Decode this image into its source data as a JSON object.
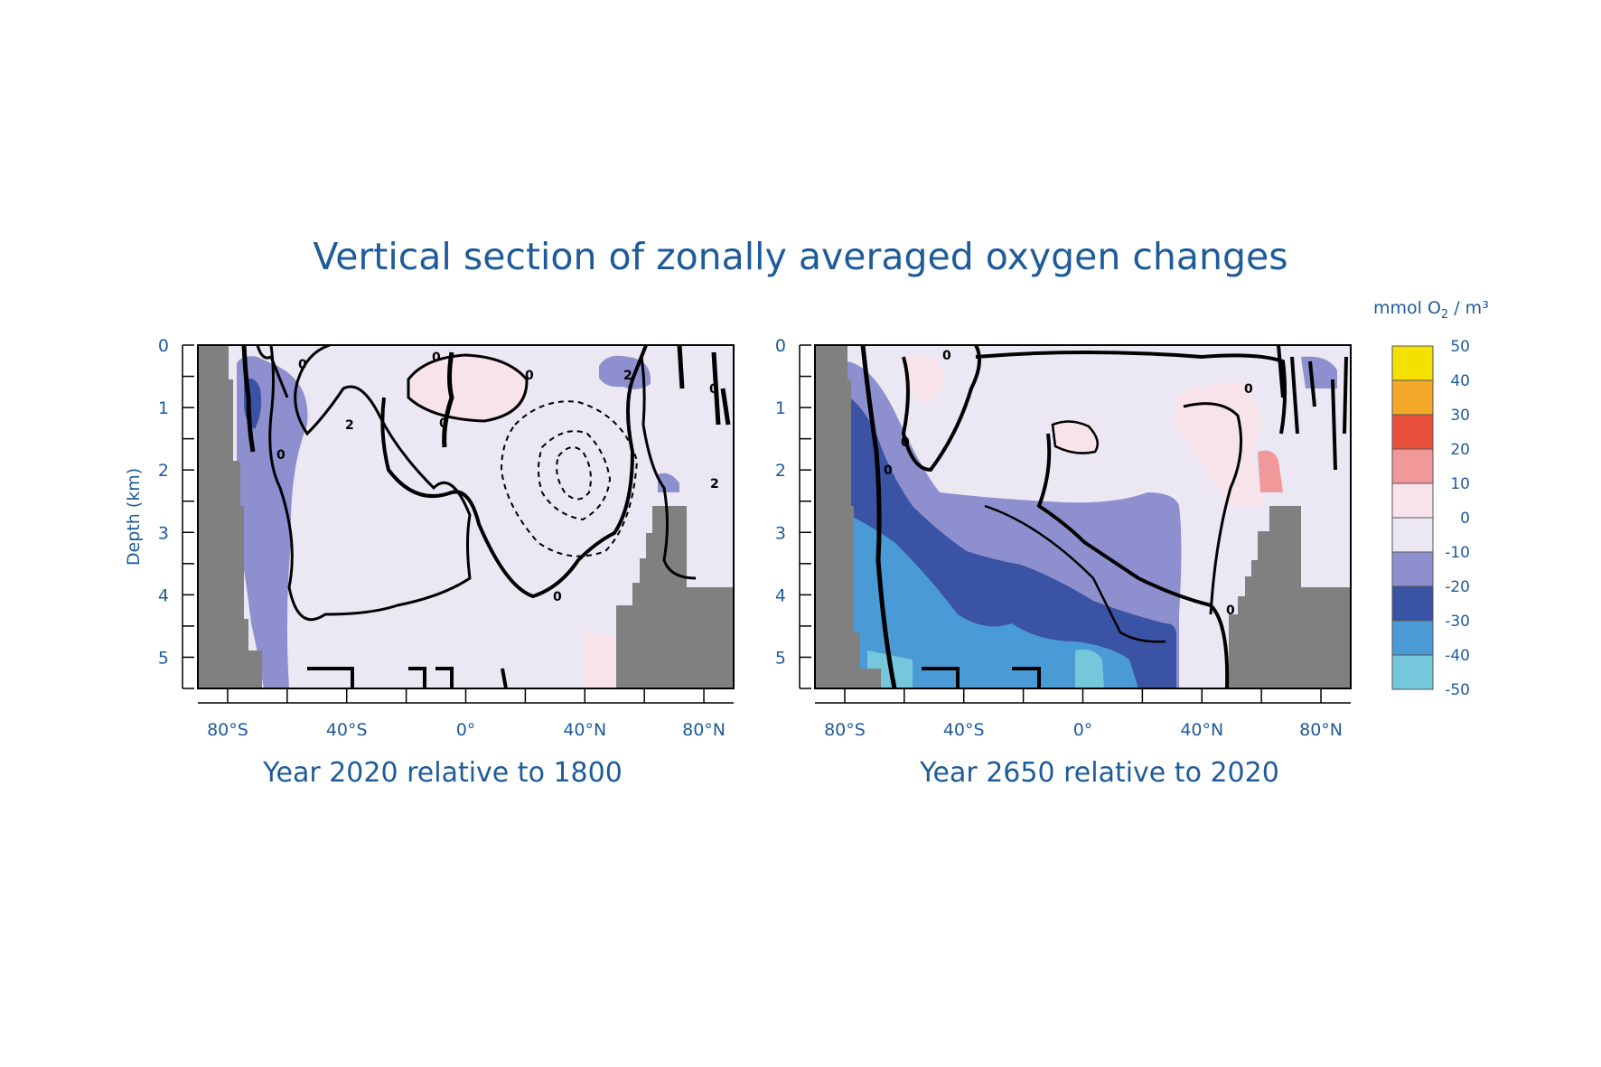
{
  "title": "Vertical section of zonally averaged oxygen changes",
  "colorbar": {
    "unit_prefix": "mmol O",
    "unit_sub": "2",
    "unit_suffix": " / m³",
    "levels": [
      {
        "label": "50",
        "color": "#f5e100"
      },
      {
        "label": "40",
        "color": "#f4a82a"
      },
      {
        "label": "30",
        "color": "#e8503c"
      },
      {
        "label": "20",
        "color": "#f0989a"
      },
      {
        "label": "10",
        "color": "#f9e3ea"
      },
      {
        "label": "0",
        "color": "#ebe7f3"
      },
      {
        "label": "-10",
        "color": "#8e8fce"
      },
      {
        "label": "-20",
        "color": "#3a53a4"
      },
      {
        "label": "-30",
        "color": "#4a9ad6"
      },
      {
        "label": "-40",
        "color": "#75c8dc"
      },
      {
        "label": "-50",
        "color": ""
      }
    ]
  },
  "chart_data": [
    {
      "type": "heatmap",
      "title": "Year 2020 relative to 1800",
      "xlabel": "",
      "ylabel": "Depth (km)",
      "x_ticks": [
        "80°S",
        "40°S",
        "0°",
        "40°N",
        "80°N"
      ],
      "y_ticks": [
        "0",
        "1",
        "2",
        "3",
        "4",
        "5"
      ],
      "xlim": [
        -90,
        90
      ],
      "ylim": [
        5.5,
        0
      ],
      "contour_labels": [
        "0",
        "0",
        "0",
        "0",
        "2",
        "0",
        "0",
        "2",
        "0",
        "2"
      ]
    },
    {
      "type": "heatmap",
      "title": "Year 2650 relative to 2020",
      "xlabel": "",
      "ylabel": "",
      "x_ticks": [
        "80°S",
        "40°S",
        "0°",
        "40°N",
        "80°N"
      ],
      "y_ticks": [
        "0",
        "1",
        "2",
        "3",
        "4",
        "5"
      ],
      "xlim": [
        -90,
        90
      ],
      "ylim": [
        5.5,
        0
      ],
      "contour_labels": [
        "0",
        "0",
        "0",
        "0",
        "0"
      ]
    }
  ]
}
